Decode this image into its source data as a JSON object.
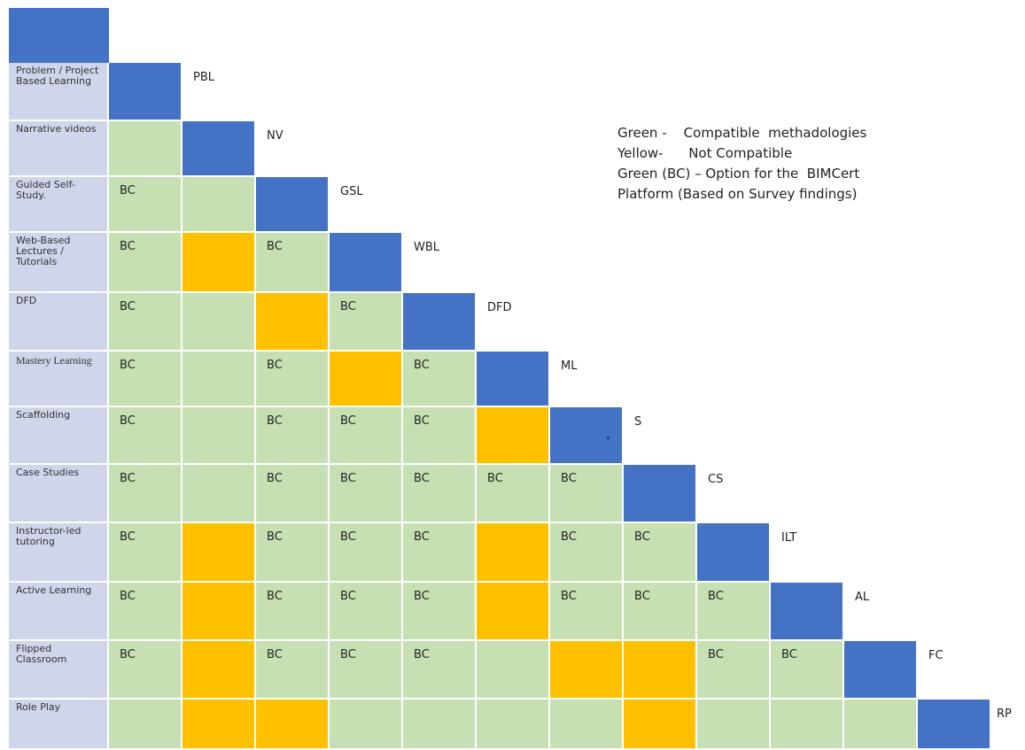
{
  "methods": [
    {
      "label": "Problem / Project Based Learning",
      "abbr": "PBL"
    },
    {
      "label": "Narrative videos",
      "abbr": "NV"
    },
    {
      "label": "Guided Self-Study.",
      "abbr": "GSL"
    },
    {
      "label": "Web-Based Lectures / Tutorials",
      "abbr": "WBL"
    },
    {
      "label": "DFD",
      "abbr": "DFD"
    },
    {
      "label": "Mastery Learning",
      "abbr": "ML"
    },
    {
      "label": "Scaffolding",
      "abbr": "S"
    },
    {
      "label": "Case Studies",
      "abbr": "CS"
    },
    {
      "label": "Instructor-led tutoring",
      "abbr": "ILT"
    },
    {
      "label": "Active Learning",
      "abbr": "AL"
    },
    {
      "label": "Flipped Classroom",
      "abbr": "FC"
    },
    {
      "label": "Role Play",
      "abbr": "RP"
    }
  ],
  "matrix": [
    [
      "D"
    ],
    [
      "G",
      "D"
    ],
    [
      "BC",
      "G",
      "D"
    ],
    [
      "BC",
      "Y",
      "BC",
      "D"
    ],
    [
      "BC",
      "G",
      "Y",
      "BC",
      "D"
    ],
    [
      "BC",
      "G",
      "BC",
      "Y",
      "BC",
      "D"
    ],
    [
      "BC",
      "G",
      "BC",
      "BC",
      "BC",
      "Y",
      "D"
    ],
    [
      "BC",
      "G",
      "BC",
      "BC",
      "BC",
      "BC",
      "BC",
      "D"
    ],
    [
      "BC",
      "Y",
      "BC",
      "BC",
      "BC",
      "Y",
      "BC",
      "BC",
      "D"
    ],
    [
      "BC",
      "Y",
      "BC",
      "BC",
      "BC",
      "Y",
      "BC",
      "BC",
      "BC",
      "D"
    ],
    [
      "BC",
      "Y",
      "BC",
      "BC",
      "BC",
      "G",
      "Y",
      "Y",
      "BC",
      "BC",
      "D"
    ],
    [
      "G",
      "Y",
      "Y",
      "G",
      "G",
      "G",
      "G",
      "Y",
      "G",
      "G",
      "G",
      "D"
    ]
  ],
  "cell_text": "BC",
  "legend": [
    "Green -    Compatible  methadologies",
    "Yellow-      Not Compatible",
    "Green (BC) – Option for the  BIMCert",
    "Platform (Based on Survey findings)"
  ],
  "colors": {
    "compatible": "#c6e0b4",
    "not_compatible": "#ffc000",
    "diagonal": "#4472c4",
    "row_header": "#cfd5ea"
  }
}
